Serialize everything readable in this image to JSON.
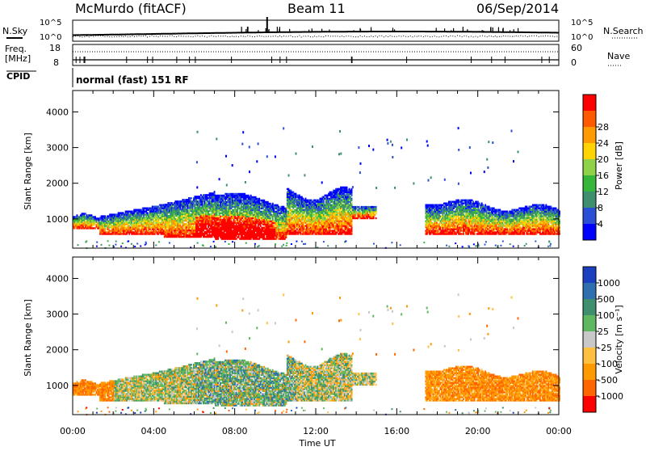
{
  "header": {
    "station": "McMurdo (fitACF)",
    "beam": "Beam 11",
    "date": "06/Sep/2014"
  },
  "panel_labels": {
    "nsky": "N.Sky",
    "nsearch": "N.Search",
    "freq": "Freq.",
    "freq_unit": "[MHz]",
    "nave": "Nave",
    "cpid": "CPID",
    "cpid_value": "normal (fast) 151 RF"
  },
  "noise_axis": {
    "left_top": "10^5",
    "left_bottom": "10^0",
    "right_top": "10^5",
    "right_bottom": "10^0"
  },
  "freq_axis": {
    "left_top": "18",
    "left_bottom": "8",
    "right_top": "60",
    "right_bottom": "0"
  },
  "colors": {
    "power_scale": [
      "#0000ff",
      "#2a4fd6",
      "#3f8f6f",
      "#35b53a",
      "#8ed24a",
      "#ffd400",
      "#ff9a00",
      "#ff5a00",
      "#ff0000"
    ],
    "velocity_scale": [
      "#1a3fbf",
      "#2f6fb0",
      "#3f8f6f",
      "#5fb85f",
      "#c8c8c8",
      "#ffc040",
      "#ff9900",
      "#ff6600",
      "#ff0000"
    ]
  },
  "chart_data": [
    {
      "type": "heatmap",
      "name": "power",
      "ylabel": "Slant Range [km]",
      "xlabel": "Time UT",
      "x_ticks": [
        "00:00",
        "04:00",
        "08:00",
        "12:00",
        "16:00",
        "20:00",
        "00:00"
      ],
      "y_ticks": [
        "1000",
        "2000",
        "3000",
        "4000"
      ],
      "ylim": [
        180,
        4600
      ],
      "xlim_hours": [
        0,
        24
      ],
      "colorbar_label": "Power [dB]",
      "colorbar_ticks": [
        "4",
        "8",
        "12",
        "16",
        "20",
        "24",
        "28"
      ]
    },
    {
      "type": "heatmap",
      "name": "velocity",
      "ylabel": "Slant Range [km]",
      "xlabel": "Time UT",
      "x_ticks": [
        "00:00",
        "04:00",
        "08:00",
        "12:00",
        "16:00",
        "20:00",
        "00:00"
      ],
      "y_ticks": [
        "1000",
        "2000",
        "3000",
        "4000"
      ],
      "ylim": [
        180,
        4600
      ],
      "xlim_hours": [
        0,
        24
      ],
      "colorbar_label": "Velocity [m s⁻¹]",
      "colorbar_ticks": [
        "1000",
        "500",
        "100",
        "25",
        "-25",
        "-100",
        "-500",
        "-1000"
      ]
    }
  ]
}
